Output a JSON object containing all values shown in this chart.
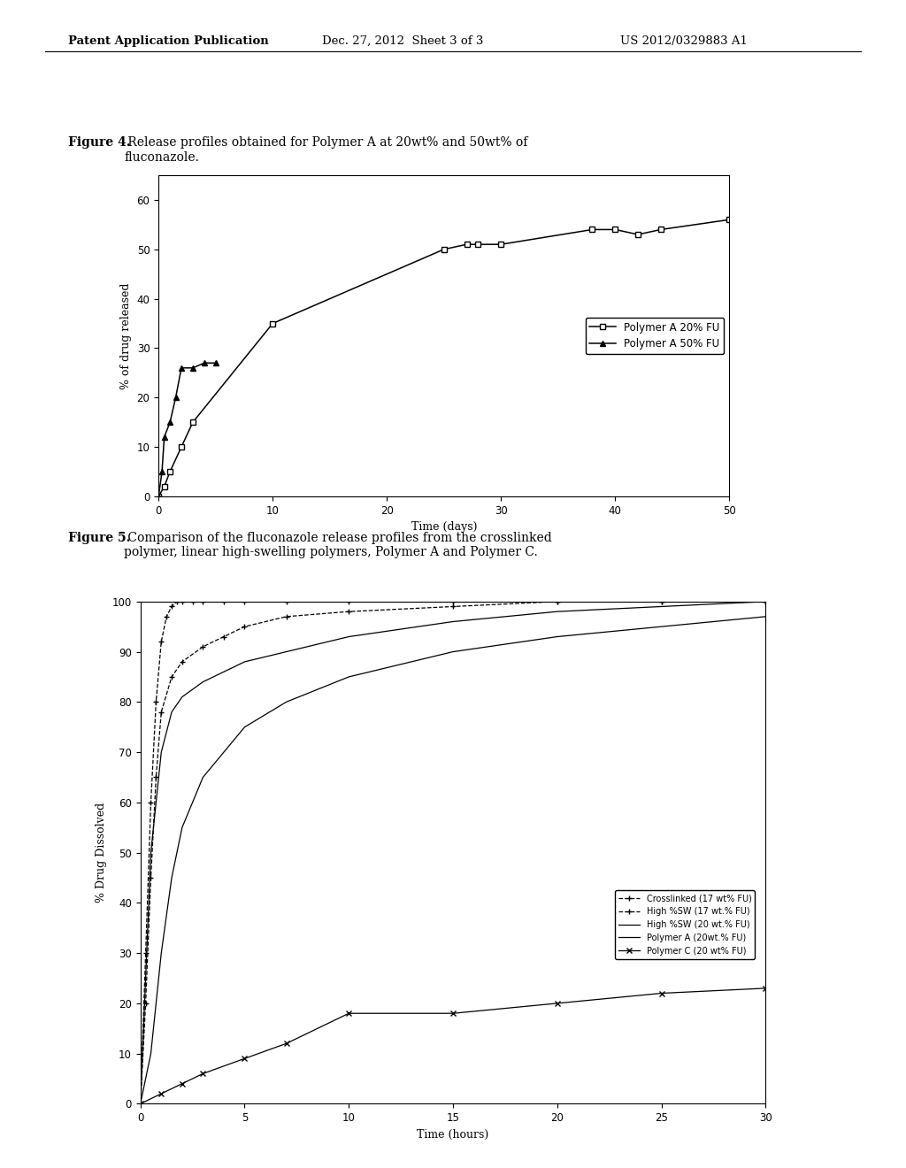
{
  "header_left": "Patent Application Publication",
  "header_mid": "Dec. 27, 2012  Sheet 3 of 3",
  "header_right": "US 2012/0329883 A1",
  "fig4_caption_bold": "Figure 4.",
  "fig4_caption_rest": " Release profiles obtained for Polymer A at 20wt% and 50wt% of\nfluconazole.",
  "fig5_caption_bold": "Figure 5.",
  "fig5_caption_rest": " Comparison of the fluconazole release profiles from the crosslinked\npolymer, linear high-swelling polymers, Polymer A and Polymer C.",
  "fig4": {
    "xlabel": "Time (days)",
    "ylabel": "% of drug released",
    "xlim": [
      0,
      50
    ],
    "ylim": [
      0,
      65
    ],
    "xticks": [
      0,
      10,
      20,
      30,
      40,
      50
    ],
    "yticks": [
      0,
      10,
      20,
      30,
      40,
      50,
      60
    ],
    "series1_label": "Polymer A 20% FU",
    "series1_x": [
      0,
      0.5,
      1,
      2,
      3,
      10,
      25,
      27,
      28,
      30,
      38,
      40,
      42,
      44,
      50
    ],
    "series1_y": [
      0,
      2,
      5,
      10,
      15,
      35,
      50,
      51,
      51,
      51,
      54,
      54,
      53,
      54,
      56
    ],
    "series2_label": "Polymer A 50% FU",
    "series2_x": [
      0,
      0.3,
      0.5,
      1,
      1.5,
      2,
      3,
      4,
      5
    ],
    "series2_y": [
      0,
      5,
      12,
      15,
      20,
      26,
      26,
      27,
      27
    ]
  },
  "fig5": {
    "xlabel": "Time (hours)",
    "ylabel": "% Drug Dissolved",
    "xlim": [
      0,
      30
    ],
    "ylim": [
      0,
      100
    ],
    "xticks": [
      0,
      5,
      10,
      15,
      20,
      25,
      30
    ],
    "yticks": [
      0,
      10,
      20,
      30,
      40,
      50,
      60,
      70,
      80,
      90,
      100
    ],
    "series": [
      {
        "label": "Crosslinked (17 wt% FU)",
        "linestyle": "--",
        "marker": "+",
        "x": [
          0,
          0.25,
          0.5,
          0.75,
          1,
          1.25,
          1.5,
          1.75,
          2,
          2.5,
          3,
          4,
          5,
          7,
          10,
          15,
          20,
          25,
          30
        ],
        "y": [
          0,
          30,
          60,
          80,
          92,
          97,
          99,
          100,
          100,
          100,
          100,
          100,
          100,
          100,
          100,
          100,
          100,
          100,
          100
        ]
      },
      {
        "label": "High %SW (17 wt.% FU)",
        "linestyle": "--",
        "marker": "+",
        "x": [
          0,
          0.25,
          0.5,
          0.75,
          1,
          1.5,
          2,
          3,
          4,
          5,
          7,
          10,
          15,
          20,
          25,
          30
        ],
        "y": [
          0,
          20,
          45,
          65,
          78,
          85,
          88,
          91,
          93,
          95,
          97,
          98,
          99,
          100,
          100,
          100
        ]
      },
      {
        "label": "High %SW (20 wt.% FU)",
        "linestyle": "-",
        "marker": null,
        "x": [
          0,
          0.5,
          1,
          1.5,
          2,
          3,
          5,
          7,
          10,
          15,
          20,
          25,
          30
        ],
        "y": [
          0,
          50,
          70,
          78,
          81,
          84,
          88,
          90,
          93,
          96,
          98,
          99,
          100
        ]
      },
      {
        "label": "Polymer A (20wt.% FU)",
        "linestyle": "-",
        "marker": null,
        "x": [
          0,
          0.5,
          1,
          1.5,
          2,
          3,
          5,
          7,
          10,
          12,
          15,
          20,
          25,
          30
        ],
        "y": [
          0,
          10,
          30,
          45,
          55,
          65,
          75,
          80,
          85,
          87,
          90,
          93,
          95,
          97
        ]
      },
      {
        "label": "Polymer C (20 wt% FU)",
        "linestyle": "-",
        "marker": "x",
        "x": [
          0,
          1,
          2,
          3,
          5,
          7,
          10,
          15,
          20,
          25,
          30
        ],
        "y": [
          0,
          2,
          4,
          6,
          9,
          12,
          18,
          18,
          20,
          22,
          23
        ]
      }
    ]
  },
  "background_color": "#ffffff"
}
